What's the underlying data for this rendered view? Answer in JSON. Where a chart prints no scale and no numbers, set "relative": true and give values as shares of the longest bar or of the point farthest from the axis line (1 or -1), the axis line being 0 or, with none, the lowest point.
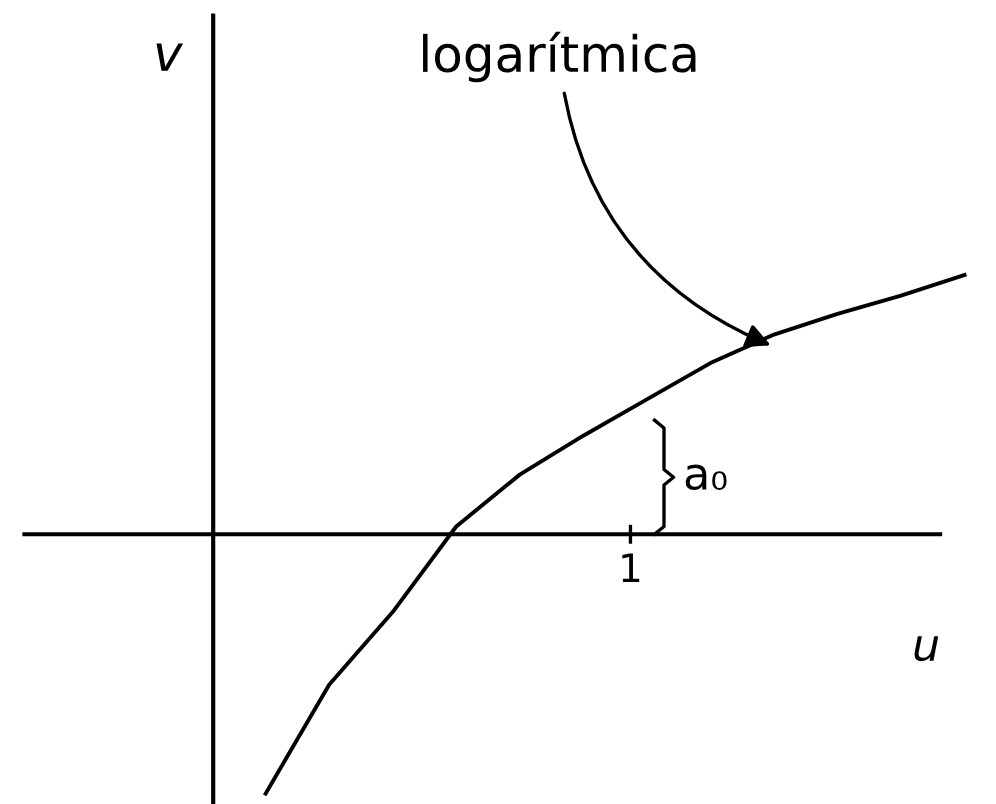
{
  "chart_data": {
    "type": "line",
    "relative": true,
    "xlabel": "u",
    "ylabel": "v",
    "categories": [
      null,
      null,
      null,
      null,
      null,
      null,
      null,
      null,
      null,
      null,
      null,
      null
    ],
    "series": [
      {
        "color": "#000000",
        "values": [
          -1,
          -0.58,
          -0.3,
          0.03,
          0.23,
          0.38,
          0.52,
          0.66,
          0.77,
          0.85,
          0.92,
          1
        ]
      }
    ],
    "annotations": [
      "logarítmica",
      "1",
      "a₀"
    ],
    "legend": false,
    "marker": "none",
    "line_style": "solid"
  }
}
